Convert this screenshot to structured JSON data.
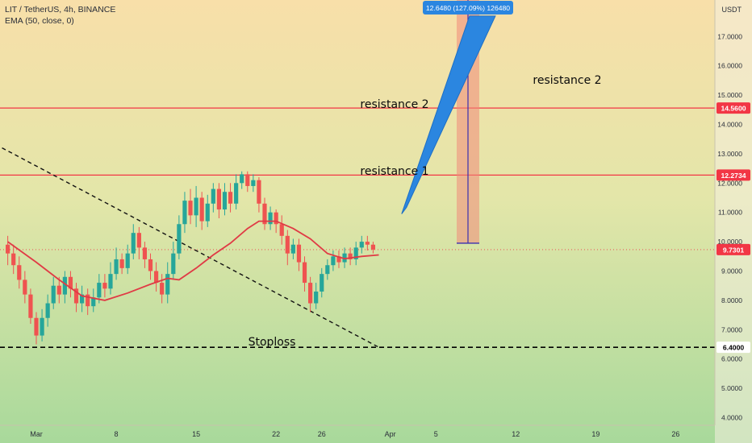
{
  "header": {
    "symbol_line": "LIT / TetherUS, 4h, BINANCE",
    "indicator_line": "EMA (50, close, 0)"
  },
  "chart_data": {
    "type": "candlestick",
    "symbol": "LIT / TetherUS",
    "interval": "4h",
    "exchange": "BINANCE",
    "currency_label": "USDT",
    "y_axis": {
      "ticks": [
        "17.0000",
        "16.0000",
        "15.0000",
        "14.0000",
        "13.0000",
        "12.0000",
        "11.0000",
        "10.0000",
        "9.0000",
        "8.0000",
        "7.0000",
        "6.0000",
        "5.0000",
        "4.0000"
      ],
      "ylim": [
        3.7,
        17.6
      ]
    },
    "x_axis": {
      "ticks": [
        {
          "label": "Mar",
          "day": 1
        },
        {
          "label": "8",
          "day": 8
        },
        {
          "label": "15",
          "day": 15
        },
        {
          "label": "22",
          "day": 22
        },
        {
          "label": "26",
          "day": 26
        },
        {
          "label": "Apr",
          "day": 32
        },
        {
          "label": "5",
          "day": 36
        },
        {
          "label": "12",
          "day": 43
        },
        {
          "label": "19",
          "day": 50
        },
        {
          "label": "26",
          "day": 57
        }
      ]
    },
    "horizontal_levels": [
      {
        "name": "resistance 2",
        "value": 14.56,
        "price_label": "14.5600",
        "color": "#f23645"
      },
      {
        "name": "resistance 1",
        "value": 12.2734,
        "price_label": "12.2734",
        "color": "#f23645"
      },
      {
        "name": "Stoploss",
        "value": 6.4,
        "price_label": "6.4000",
        "color": "#000000",
        "style": "dashed"
      }
    ],
    "last_price": {
      "value": 9.7301,
      "label": "9.7301",
      "color": "#f23645"
    },
    "annotations": [
      {
        "text": "resistance 2",
        "near": "right of projection"
      },
      {
        "text": "resistance 2",
        "near": "level line"
      },
      {
        "text": "resistance 1",
        "near": "level line"
      },
      {
        "text": "Stoploss",
        "near": "stoploss line"
      }
    ],
    "trendline": {
      "style": "dashed",
      "from": {
        "day": -2,
        "price": 13.2
      },
      "to": {
        "day": 31,
        "price": 6.4
      }
    },
    "projection": {
      "label": "12.6480 (127.09%) 126480",
      "base": 9.95,
      "target": 22.6,
      "arrow_from": {
        "day": 33,
        "price": 10.95
      },
      "arrow_to": {
        "day": 40.5,
        "price": 17.7
      }
    },
    "ema": {
      "name": "EMA (50, close, 0)",
      "color": "#e03a45",
      "points": [
        [
          -1.5,
          10.0
        ],
        [
          1,
          9.3
        ],
        [
          3,
          8.7
        ],
        [
          5,
          8.15
        ],
        [
          7,
          8.0
        ],
        [
          9,
          8.25
        ],
        [
          11,
          8.55
        ],
        [
          12.5,
          8.75
        ],
        [
          13.5,
          8.7
        ],
        [
          15,
          9.1
        ],
        [
          16.5,
          9.55
        ],
        [
          18,
          9.95
        ],
        [
          19.5,
          10.45
        ],
        [
          20.5,
          10.7
        ],
        [
          22,
          10.7
        ],
        [
          23.5,
          10.45
        ],
        [
          25,
          10.1
        ],
        [
          26.5,
          9.6
        ],
        [
          28,
          9.42
        ],
        [
          29.5,
          9.5
        ],
        [
          31,
          9.55
        ]
      ]
    },
    "candles": [
      [
        -1.5,
        9.9,
        9.6,
        10.2,
        9.2
      ],
      [
        -1.0,
        9.6,
        9.2,
        9.9,
        8.9
      ],
      [
        -0.5,
        9.2,
        8.7,
        9.5,
        8.4
      ],
      [
        0.0,
        8.7,
        8.2,
        9.0,
        7.9
      ],
      [
        0.5,
        8.2,
        7.4,
        8.4,
        7.2
      ],
      [
        1.0,
        7.4,
        6.8,
        7.6,
        6.5
      ],
      [
        1.5,
        6.8,
        7.4,
        7.7,
        6.6
      ],
      [
        2.0,
        7.4,
        7.9,
        8.2,
        7.1
      ],
      [
        2.5,
        7.9,
        8.5,
        8.8,
        7.7
      ],
      [
        3.0,
        8.5,
        8.2,
        8.8,
        7.9
      ],
      [
        3.5,
        8.2,
        8.8,
        9.0,
        7.9
      ],
      [
        4.0,
        8.8,
        8.4,
        9.0,
        8.1
      ],
      [
        4.5,
        8.4,
        7.9,
        8.6,
        7.6
      ],
      [
        5.0,
        7.9,
        8.2,
        8.5,
        7.6
      ],
      [
        5.5,
        8.2,
        7.8,
        8.4,
        7.5
      ],
      [
        6.0,
        7.8,
        8.1,
        8.4,
        7.6
      ],
      [
        6.5,
        8.1,
        8.6,
        8.9,
        7.9
      ],
      [
        7.0,
        8.6,
        8.4,
        8.9,
        8.1
      ],
      [
        7.5,
        8.4,
        8.9,
        9.3,
        8.2
      ],
      [
        8.0,
        8.9,
        9.4,
        9.8,
        8.7
      ],
      [
        8.5,
        9.4,
        9.1,
        9.6,
        8.9
      ],
      [
        9.0,
        9.1,
        9.6,
        9.9,
        8.9
      ],
      [
        9.5,
        9.6,
        10.3,
        10.6,
        9.4
      ],
      [
        10.0,
        10.3,
        9.8,
        10.5,
        9.4
      ],
      [
        10.5,
        9.8,
        9.4,
        10.0,
        9.1
      ],
      [
        11.0,
        9.4,
        9.0,
        9.6,
        8.7
      ],
      [
        11.5,
        9.0,
        8.6,
        9.3,
        8.3
      ],
      [
        12.0,
        8.6,
        8.2,
        8.9,
        7.9
      ],
      [
        12.5,
        8.2,
        8.9,
        9.3,
        7.9
      ],
      [
        13.0,
        8.9,
        9.6,
        10.0,
        8.7
      ],
      [
        13.5,
        9.6,
        10.6,
        10.9,
        9.4
      ],
      [
        14.0,
        10.6,
        11.4,
        11.7,
        10.3
      ],
      [
        14.5,
        11.4,
        10.9,
        11.8,
        10.6
      ],
      [
        15.0,
        10.9,
        11.5,
        11.9,
        10.5
      ],
      [
        15.5,
        11.5,
        10.7,
        11.7,
        10.4
      ],
      [
        16.0,
        10.7,
        11.3,
        11.6,
        10.5
      ],
      [
        16.5,
        11.3,
        11.8,
        12.0,
        11.0
      ],
      [
        17.0,
        11.8,
        11.1,
        12.0,
        10.8
      ],
      [
        17.5,
        11.1,
        11.7,
        12.0,
        10.9
      ],
      [
        18.0,
        11.7,
        11.3,
        12.0,
        11.0
      ],
      [
        18.5,
        11.3,
        12.0,
        12.3,
        11.1
      ],
      [
        19.0,
        12.0,
        12.3,
        12.4,
        11.8
      ],
      [
        19.5,
        12.3,
        11.9,
        12.4,
        11.7
      ],
      [
        20.0,
        11.9,
        12.1,
        12.3,
        11.7
      ],
      [
        20.5,
        12.1,
        11.3,
        12.2,
        11.0
      ],
      [
        21.0,
        11.3,
        10.6,
        11.5,
        10.4
      ],
      [
        21.5,
        10.6,
        11.0,
        11.2,
        10.4
      ],
      [
        22.0,
        11.0,
        10.6,
        11.1,
        10.3
      ],
      [
        22.5,
        10.6,
        10.2,
        10.9,
        9.9
      ],
      [
        23.0,
        10.2,
        9.6,
        10.4,
        9.2
      ],
      [
        23.5,
        9.6,
        9.9,
        10.1,
        9.4
      ],
      [
        24.0,
        9.9,
        9.3,
        10.1,
        9.0
      ],
      [
        24.5,
        9.3,
        8.6,
        9.5,
        8.3
      ],
      [
        25.0,
        8.6,
        7.9,
        8.8,
        7.6
      ],
      [
        25.5,
        7.9,
        8.3,
        8.6,
        7.7
      ],
      [
        26.0,
        8.3,
        8.9,
        9.1,
        8.1
      ],
      [
        26.5,
        8.9,
        9.2,
        9.4,
        8.7
      ],
      [
        27.0,
        9.2,
        9.5,
        9.7,
        9.0
      ],
      [
        27.5,
        9.5,
        9.3,
        9.7,
        9.1
      ],
      [
        28.0,
        9.3,
        9.6,
        9.8,
        9.1
      ],
      [
        28.5,
        9.6,
        9.4,
        9.8,
        9.2
      ],
      [
        29.0,
        9.4,
        9.8,
        10.0,
        9.2
      ],
      [
        29.5,
        9.8,
        10.0,
        10.2,
        9.6
      ],
      [
        30.0,
        10.0,
        9.9,
        10.2,
        9.7
      ],
      [
        30.5,
        9.9,
        9.73,
        10.0,
        9.6
      ]
    ]
  }
}
